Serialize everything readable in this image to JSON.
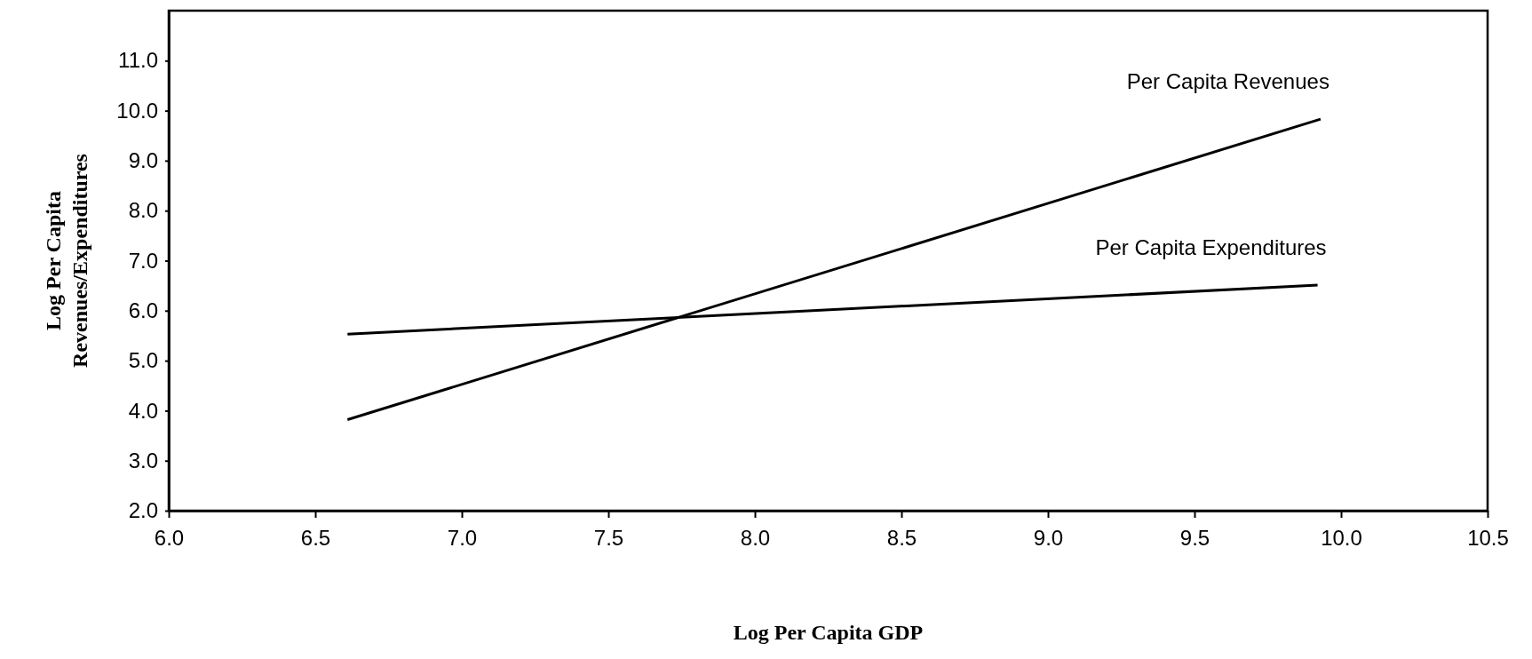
{
  "chart_data": {
    "type": "line",
    "xlabel": "Log Per Capita GDP",
    "ylabel": "Log Per Capita\nRevenues/Expenditures",
    "xlim": [
      6,
      10.5
    ],
    "ylim": [
      2,
      12
    ],
    "xticks": [
      {
        "value": 6,
        "label": "6.0"
      },
      {
        "value": 6.5,
        "label": "6.5"
      },
      {
        "value": 7,
        "label": "7.0"
      },
      {
        "value": 7.5,
        "label": "7.5"
      },
      {
        "value": 8,
        "label": "8.0"
      },
      {
        "value": 8.5,
        "label": "8.5"
      },
      {
        "value": 9,
        "label": "9.0"
      },
      {
        "value": 9.5,
        "label": "9.5"
      },
      {
        "value": 10,
        "label": "10.0"
      },
      {
        "value": 10.5,
        "label": "10.5"
      }
    ],
    "yticks": [
      {
        "value": 2,
        "label": "2.0"
      },
      {
        "value": 3,
        "label": "3.0"
      },
      {
        "value": 4,
        "label": "4.0"
      },
      {
        "value": 5,
        "label": "5.0"
      },
      {
        "value": 6,
        "label": "6.0"
      },
      {
        "value": 7,
        "label": "7.0"
      },
      {
        "value": 8,
        "label": "8.0"
      },
      {
        "value": 9,
        "label": "9.0"
      },
      {
        "value": 10,
        "label": "10.0"
      },
      {
        "value": 11,
        "label": "11.0"
      }
    ],
    "grid": false,
    "legend": false,
    "marker": "none",
    "line_style": "solid",
    "series": [
      {
        "name": "Per Capita Revenues",
        "color": "#000000",
        "x": [
          6.61,
          9.93
        ],
        "values": [
          3.82,
          9.83
        ]
      },
      {
        "name": "Per Capita Expenditures",
        "color": "#000000",
        "x": [
          6.61,
          9.92
        ],
        "values": [
          5.53,
          6.51
        ]
      }
    ]
  }
}
